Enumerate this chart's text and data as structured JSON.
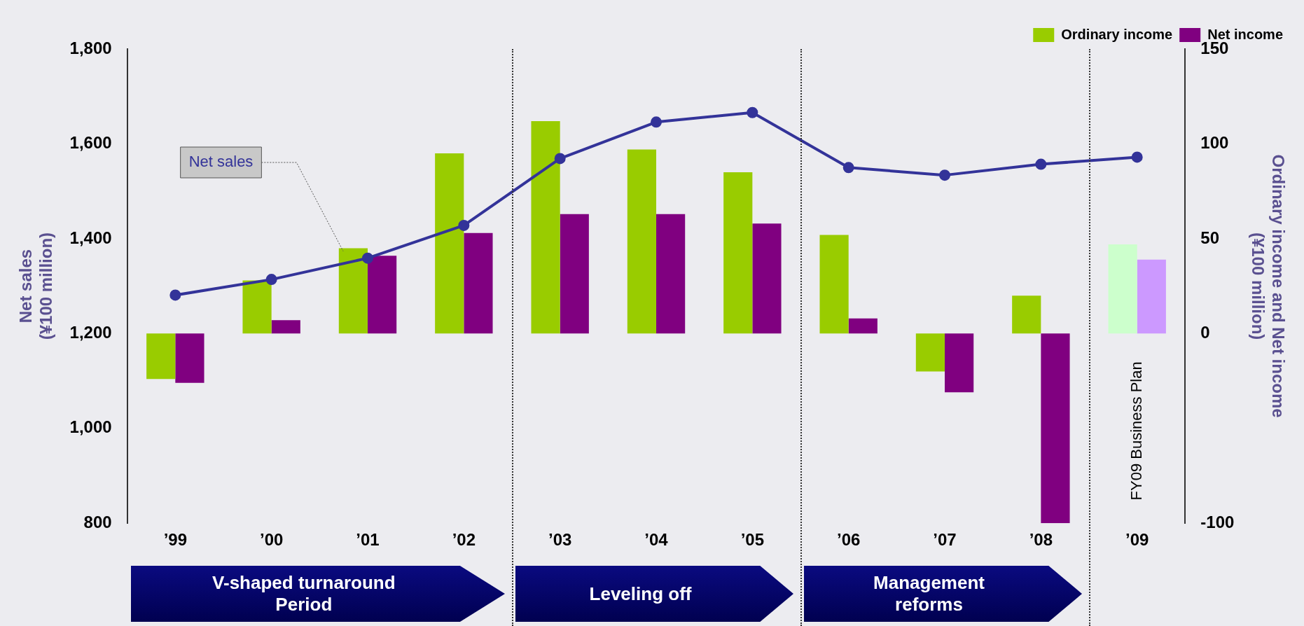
{
  "chart_data": {
    "type": "bar",
    "categories": [
      "’99",
      "’00",
      "’01",
      "’02",
      "’03",
      "’04",
      "’05",
      "’06",
      "’07",
      "’08",
      "’09"
    ],
    "series": [
      {
        "name": "Ordinary income",
        "axis": "y2",
        "color": "#99cc00",
        "colors": [
          "#99cc00",
          "#99cc00",
          "#99cc00",
          "#99cc00",
          "#99cc00",
          "#99cc00",
          "#99cc00",
          "#99cc00",
          "#99cc00",
          "#99cc00",
          "#ccffcc"
        ],
        "values": [
          -24,
          28,
          45,
          95,
          112,
          97,
          85,
          52,
          -20,
          20,
          47
        ]
      },
      {
        "name": "Net income",
        "axis": "y2",
        "color": "#800080",
        "colors": [
          "#800080",
          "#800080",
          "#800080",
          "#800080",
          "#800080",
          "#800080",
          "#800080",
          "#800080",
          "#800080",
          "#800080",
          "#cc99ff"
        ],
        "values": [
          -26,
          7,
          41,
          53,
          63,
          63,
          58,
          8,
          -31,
          -100,
          39
        ]
      },
      {
        "name": "Net sales",
        "type": "line",
        "color": "#333399",
        "values": [
          1281,
          1314,
          1359,
          1428,
          1569,
          1646,
          1666,
          1550,
          1534,
          1557,
          1572
        ]
      }
    ],
    "ylabel": "Net sales\n(¥100 million)",
    "y2label": "Ordinary income and Net income\n(¥100 million)",
    "ylim": [
      800,
      1800
    ],
    "yticks": [
      800,
      {
        "value": 1000,
        "label": "1,000"
      },
      {
        "value": 1200,
        "label": "1,200"
      },
      {
        "value": 1400,
        "label": "1,400"
      },
      {
        "value": 1600,
        "label": "1,600"
      },
      {
        "value": 1800,
        "label": "1,800"
      }
    ],
    "y2lim": [
      -100,
      150
    ],
    "y2ticks": [
      -100,
      0,
      50,
      100,
      150
    ],
    "annotations": [
      "V-shaped turnaround\nPeriod",
      "Leveling off",
      "Management\nreforms",
      "FY09 Business Plan"
    ],
    "grid": false,
    "legend": "top right",
    "marker": "circle",
    "line_style": "solid"
  }
}
